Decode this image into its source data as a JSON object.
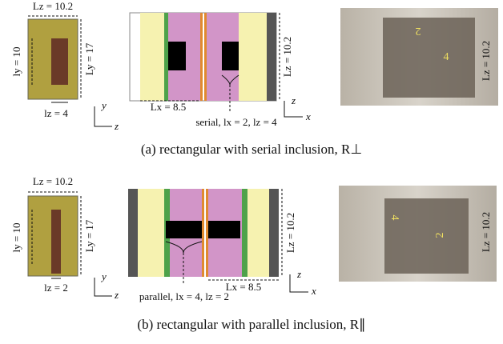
{
  "panels": [
    {
      "schematic": {
        "top": "Lz = 10.2",
        "left": "ly = 10",
        "right": "Ly = 17",
        "bottom": "lz = 4",
        "axis_y": "y",
        "axis_z": "z"
      },
      "cross_section": {
        "length": "Lx = 8.5",
        "height": "Lz = 10.2",
        "inclusion": "serial, lx = 2, lz = 4",
        "axis_z": "z",
        "axis_x": "x"
      },
      "photo": {
        "inclusion_x": "2",
        "inclusion_z": "4",
        "height": "Lz = 10.2"
      },
      "caption": "(a)  rectangular with serial inclusion, R⊥"
    },
    {
      "schematic": {
        "top": "Lz = 10.2",
        "left": "ly = 10",
        "right": "Ly = 17",
        "bottom": "lz = 2",
        "axis_y": "y",
        "axis_z": "z"
      },
      "cross_section": {
        "length": "Lx = 8.5",
        "height": "Lz = 10.2",
        "inclusion": "parallel, lx = 4, lz = 2",
        "axis_z": "z",
        "axis_x": "x"
      },
      "photo": {
        "inclusion_x": "4",
        "inclusion_z": "2",
        "height": "Lz = 10.2"
      },
      "caption": "(b)  rectangular with parallel inclusion, R∥"
    }
  ]
}
